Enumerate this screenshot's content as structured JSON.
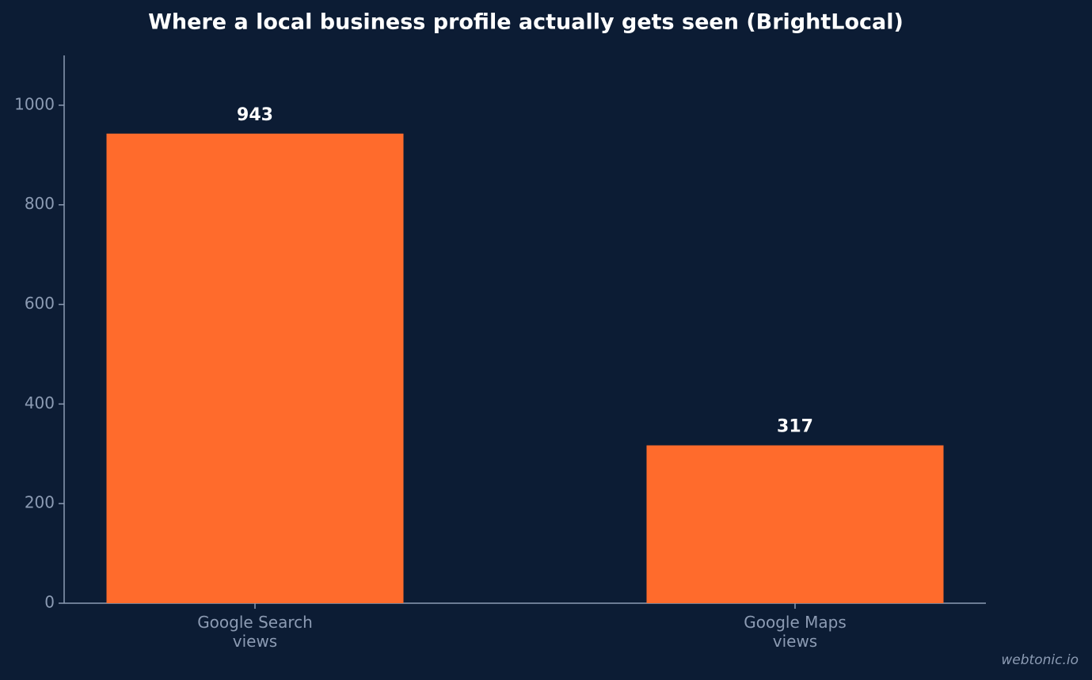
{
  "chart_data": {
    "type": "bar",
    "title": "Where a local business profile actually gets seen (BrightLocal)",
    "categories": [
      "Google Search\nviews",
      "Google Maps\nviews"
    ],
    "values": [
      943,
      317
    ],
    "color": "#ff6b2c",
    "ylim": [
      0,
      1100
    ],
    "yticks": [
      0,
      200,
      400,
      600,
      800,
      1000
    ],
    "grid": false,
    "watermark": "webtonic.io"
  }
}
